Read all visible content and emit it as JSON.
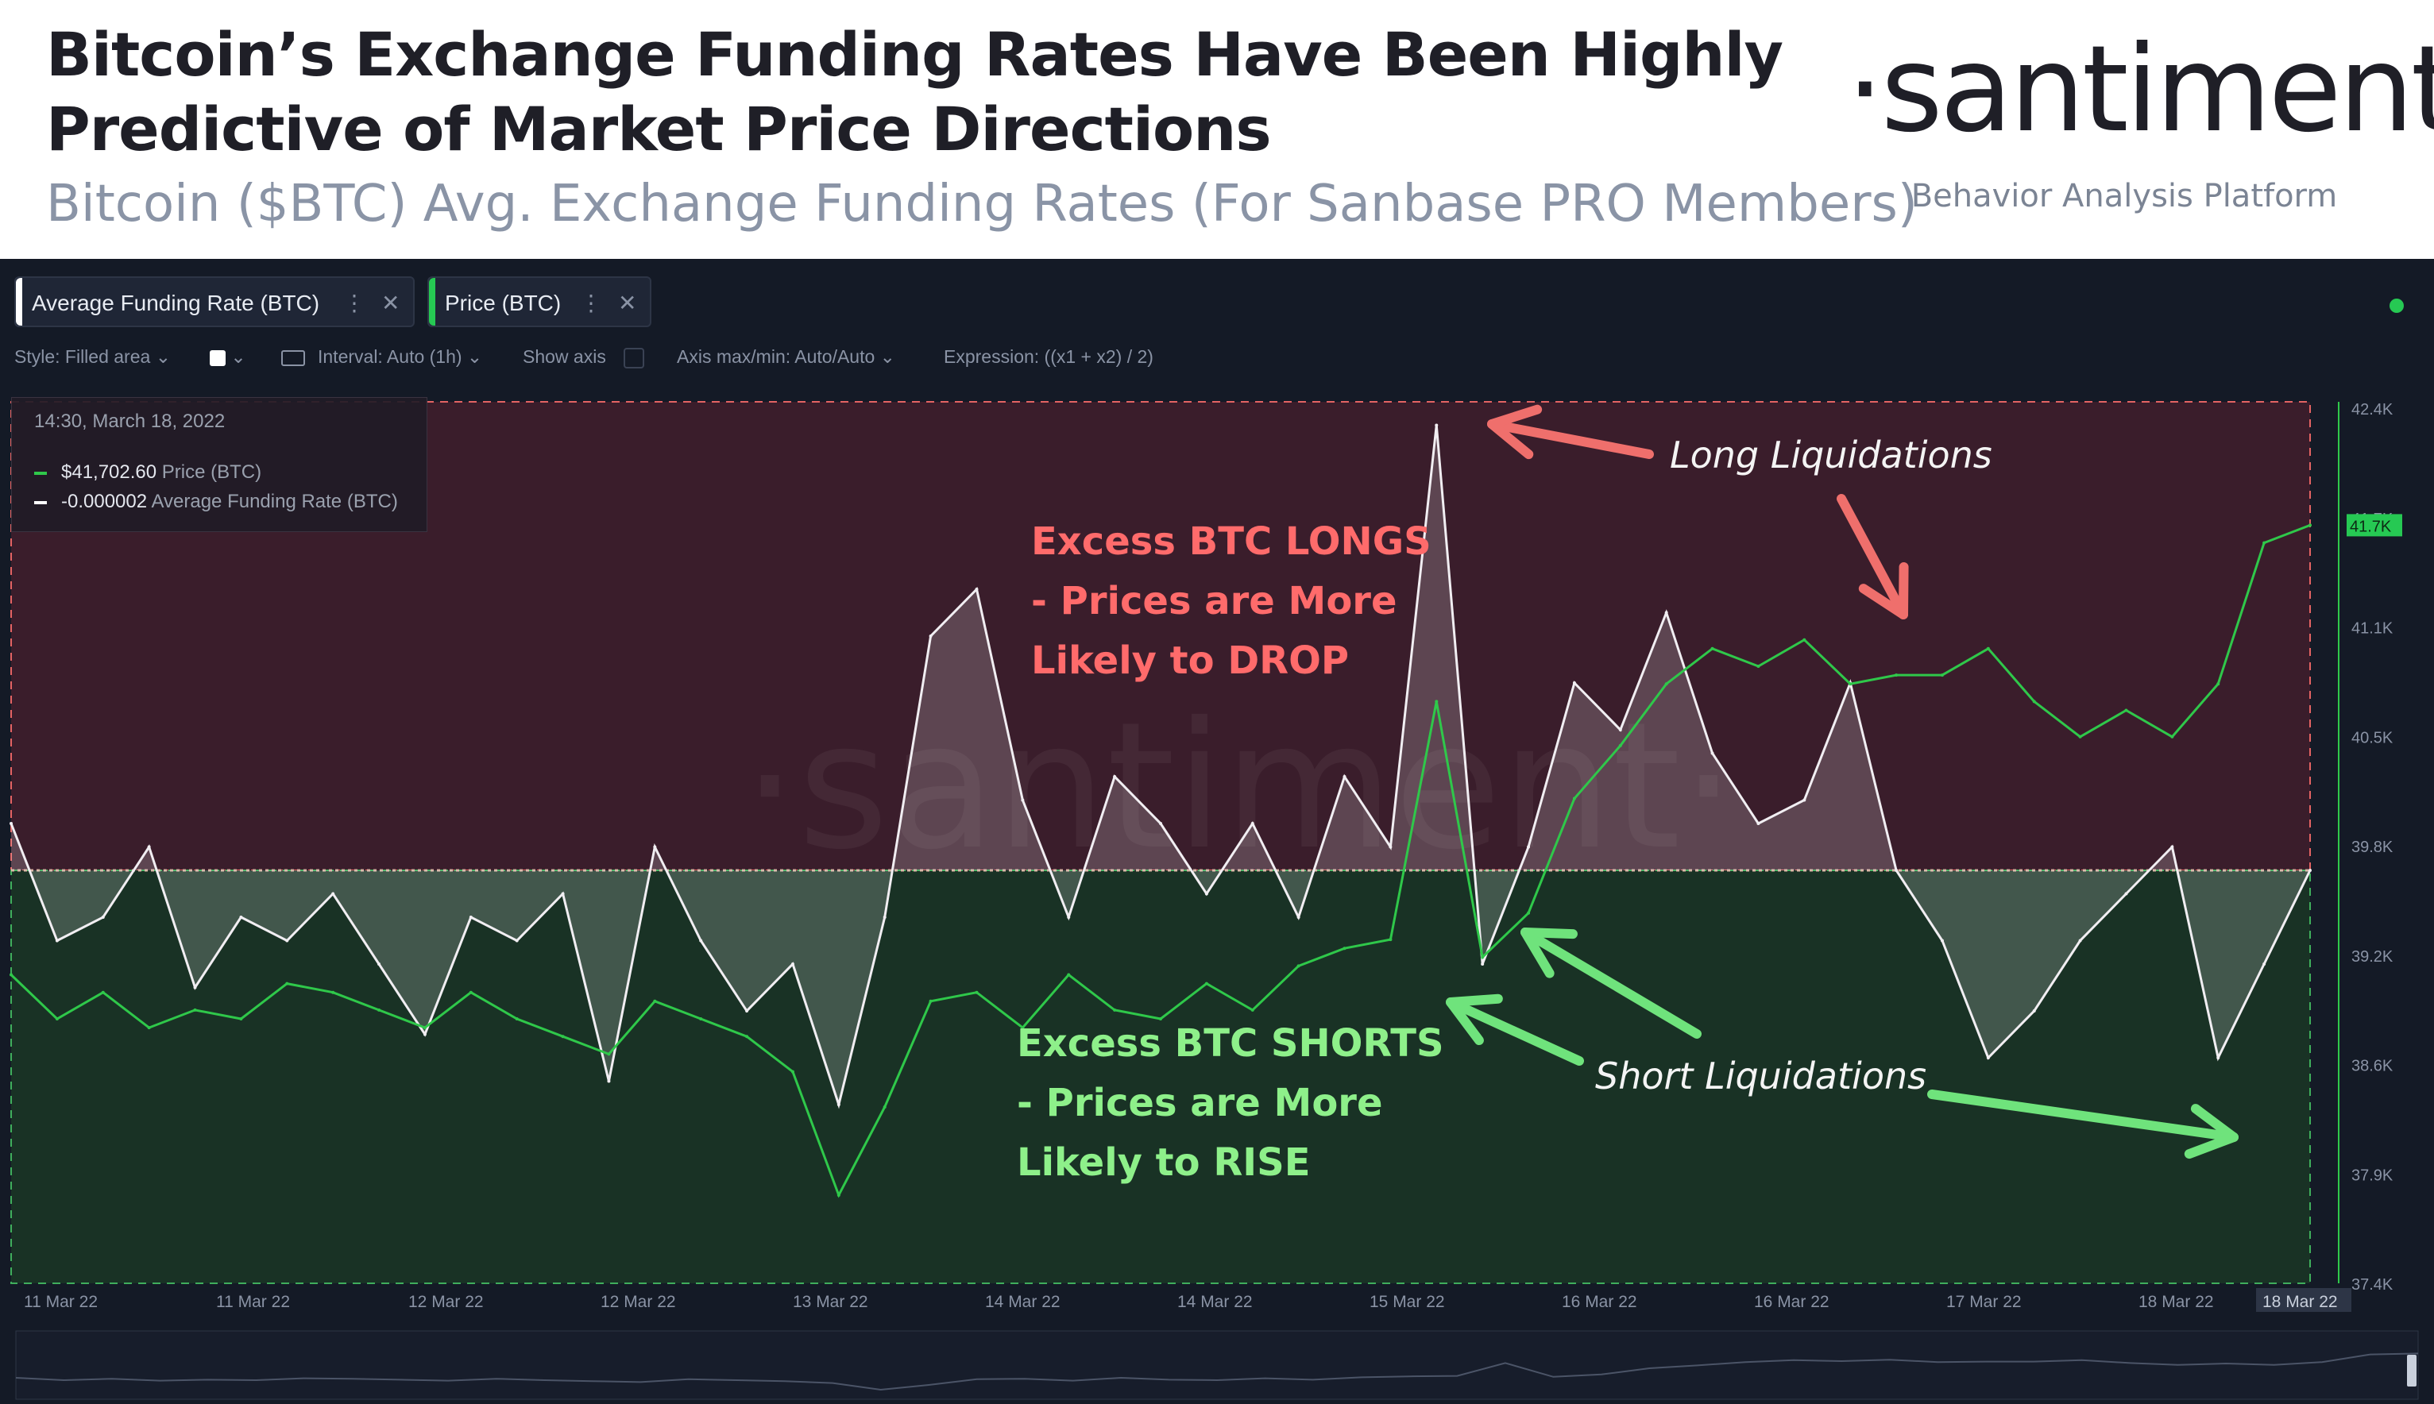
{
  "header": {
    "title_line1": "Bitcoin’s Exchange Funding Rates Have Been Highly",
    "title_line2": "Predictive of Market Price Directions",
    "subtitle": "Bitcoin ($BTC) Avg. Exchange Funding Rates (For Sanbase PRO Members)",
    "brand": "·santiment·",
    "brand_tagline": "Behavior Analysis Platform"
  },
  "toolbar": {
    "metric_chips": [
      {
        "label": "Average Funding Rate (BTC)",
        "color": "#ffffff"
      },
      {
        "label": "Price (BTC)",
        "color": "#26c953"
      }
    ],
    "more_icon": "vertical-dots-icon",
    "close_icon": "close-icon",
    "style_label": "Style: Filled area",
    "interval_label": "Interval: Auto (1h)",
    "show_axis_label": "Show axis",
    "axis_label": "Axis max/min: Auto/Auto",
    "expression_label": "Expression: ((x1 + x2) / 2)"
  },
  "tooltip": {
    "date": "14:30, March 18, 2022",
    "price_value": "$41,702.60",
    "price_name": "Price (BTC)",
    "funding_value": "-0.000002",
    "funding_name": "Average Funding Rate (BTC)"
  },
  "annotations": {
    "longs_line1": "Excess BTC LONGS",
    "longs_line2": "- Prices are More",
    "longs_line3": "Likely to DROP",
    "shorts_line1": "Excess BTC SHORTS",
    "shorts_line2": "- Prices are More",
    "shorts_line3": "Likely to RISE",
    "long_liq": "Long Liquidations",
    "short_liq": "Short Liquidations"
  },
  "colors": {
    "price_line": "#2fc84a",
    "funding_line": "#f1eef2",
    "long_zone": "#3a1d2b",
    "short_zone": "#193225",
    "long_arrow": "#ef6f6c",
    "short_arrow": "#6fe37c",
    "longs_text": "#ff6b6b",
    "shorts_text": "#8ef08a"
  },
  "chart_data": {
    "type": "line",
    "title": "Bitcoin ($BTC) Avg. Exchange Funding Rates (For Sanbase PRO Members)",
    "x_ticks": [
      "11 Mar 22",
      "11 Mar 22",
      "12 Mar 22",
      "12 Mar 22",
      "13 Mar 22",
      "14 Mar 22",
      "14 Mar 22",
      "15 Mar 22",
      "16 Mar 22",
      "16 Mar 22",
      "17 Mar 22",
      "18 Mar 22",
      "18 Mar 22"
    ],
    "x_range": [
      0,
      100
    ],
    "y_ticks": [
      "42.4K",
      "41.7K",
      "41.1K",
      "40.5K",
      "39.8K",
      "39.2K",
      "38.6K",
      "37.9K",
      "37.4K"
    ],
    "y_range": [
      37400,
      42400
    ],
    "current_price_label": "41.7K",
    "highlight_x_label": "18 Mar 22",
    "grid": false,
    "series": [
      {
        "name": "Price (BTC)",
        "color": "#2fc84a",
        "x": [
          0,
          2,
          4,
          6,
          8,
          10,
          12,
          14,
          16,
          18,
          20,
          22,
          24,
          26,
          28,
          30,
          32,
          34,
          36,
          38,
          40,
          42,
          44,
          46,
          48,
          50,
          52,
          54,
          56,
          58,
          60,
          62,
          64,
          66,
          68,
          70,
          72,
          74,
          76,
          78,
          80,
          82,
          84,
          86,
          88,
          90,
          92,
          94,
          96,
          98,
          100
        ],
        "y": [
          39150,
          38900,
          39050,
          38850,
          38950,
          38900,
          39100,
          39050,
          38950,
          38850,
          39050,
          38900,
          38800,
          38700,
          39000,
          38900,
          38800,
          38600,
          37900,
          38400,
          39000,
          39050,
          38850,
          39150,
          38950,
          38900,
          39100,
          38950,
          39200,
          39300,
          39350,
          40700,
          39250,
          39500,
          40150,
          40450,
          40800,
          41000,
          40900,
          41050,
          40800,
          40850,
          40850,
          41000,
          40700,
          40500,
          40650,
          40500,
          40800,
          41600,
          41700
        ]
      },
      {
        "name": "Average Funding Rate (BTC)",
        "color": "#f1eef2",
        "x": [
          0,
          2,
          4,
          6,
          8,
          10,
          12,
          14,
          16,
          18,
          20,
          22,
          24,
          26,
          28,
          30,
          32,
          34,
          36,
          38,
          40,
          42,
          44,
          46,
          48,
          50,
          52,
          54,
          56,
          58,
          60,
          62,
          64,
          66,
          68,
          70,
          72,
          74,
          76,
          78,
          80,
          82,
          84,
          86,
          88,
          90,
          92,
          94,
          96,
          98,
          100
        ],
        "y": [
          0.0002,
          -0.0003,
          -0.0002,
          0.0001,
          -0.0005,
          -0.0002,
          -0.0003,
          -0.0001,
          -0.0004,
          -0.0007,
          -0.0002,
          -0.0003,
          -0.0001,
          -0.0009,
          0.0001,
          -0.0003,
          -0.0006,
          -0.0004,
          -0.001,
          -0.0002,
          0.001,
          0.0012,
          0.0003,
          -0.0002,
          0.0004,
          0.0002,
          -0.0001,
          0.0002,
          -0.0002,
          0.0004,
          0.0001,
          0.0019,
          -0.0004,
          0.0001,
          0.0008,
          0.0006,
          0.0011,
          0.0005,
          0.0002,
          0.0003,
          0.0008,
          0.0,
          -0.0003,
          -0.0008,
          -0.0006,
          -0.0003,
          -0.0001,
          0.0001,
          -0.0008,
          -0.0004,
          0.0
        ]
      }
    ]
  }
}
